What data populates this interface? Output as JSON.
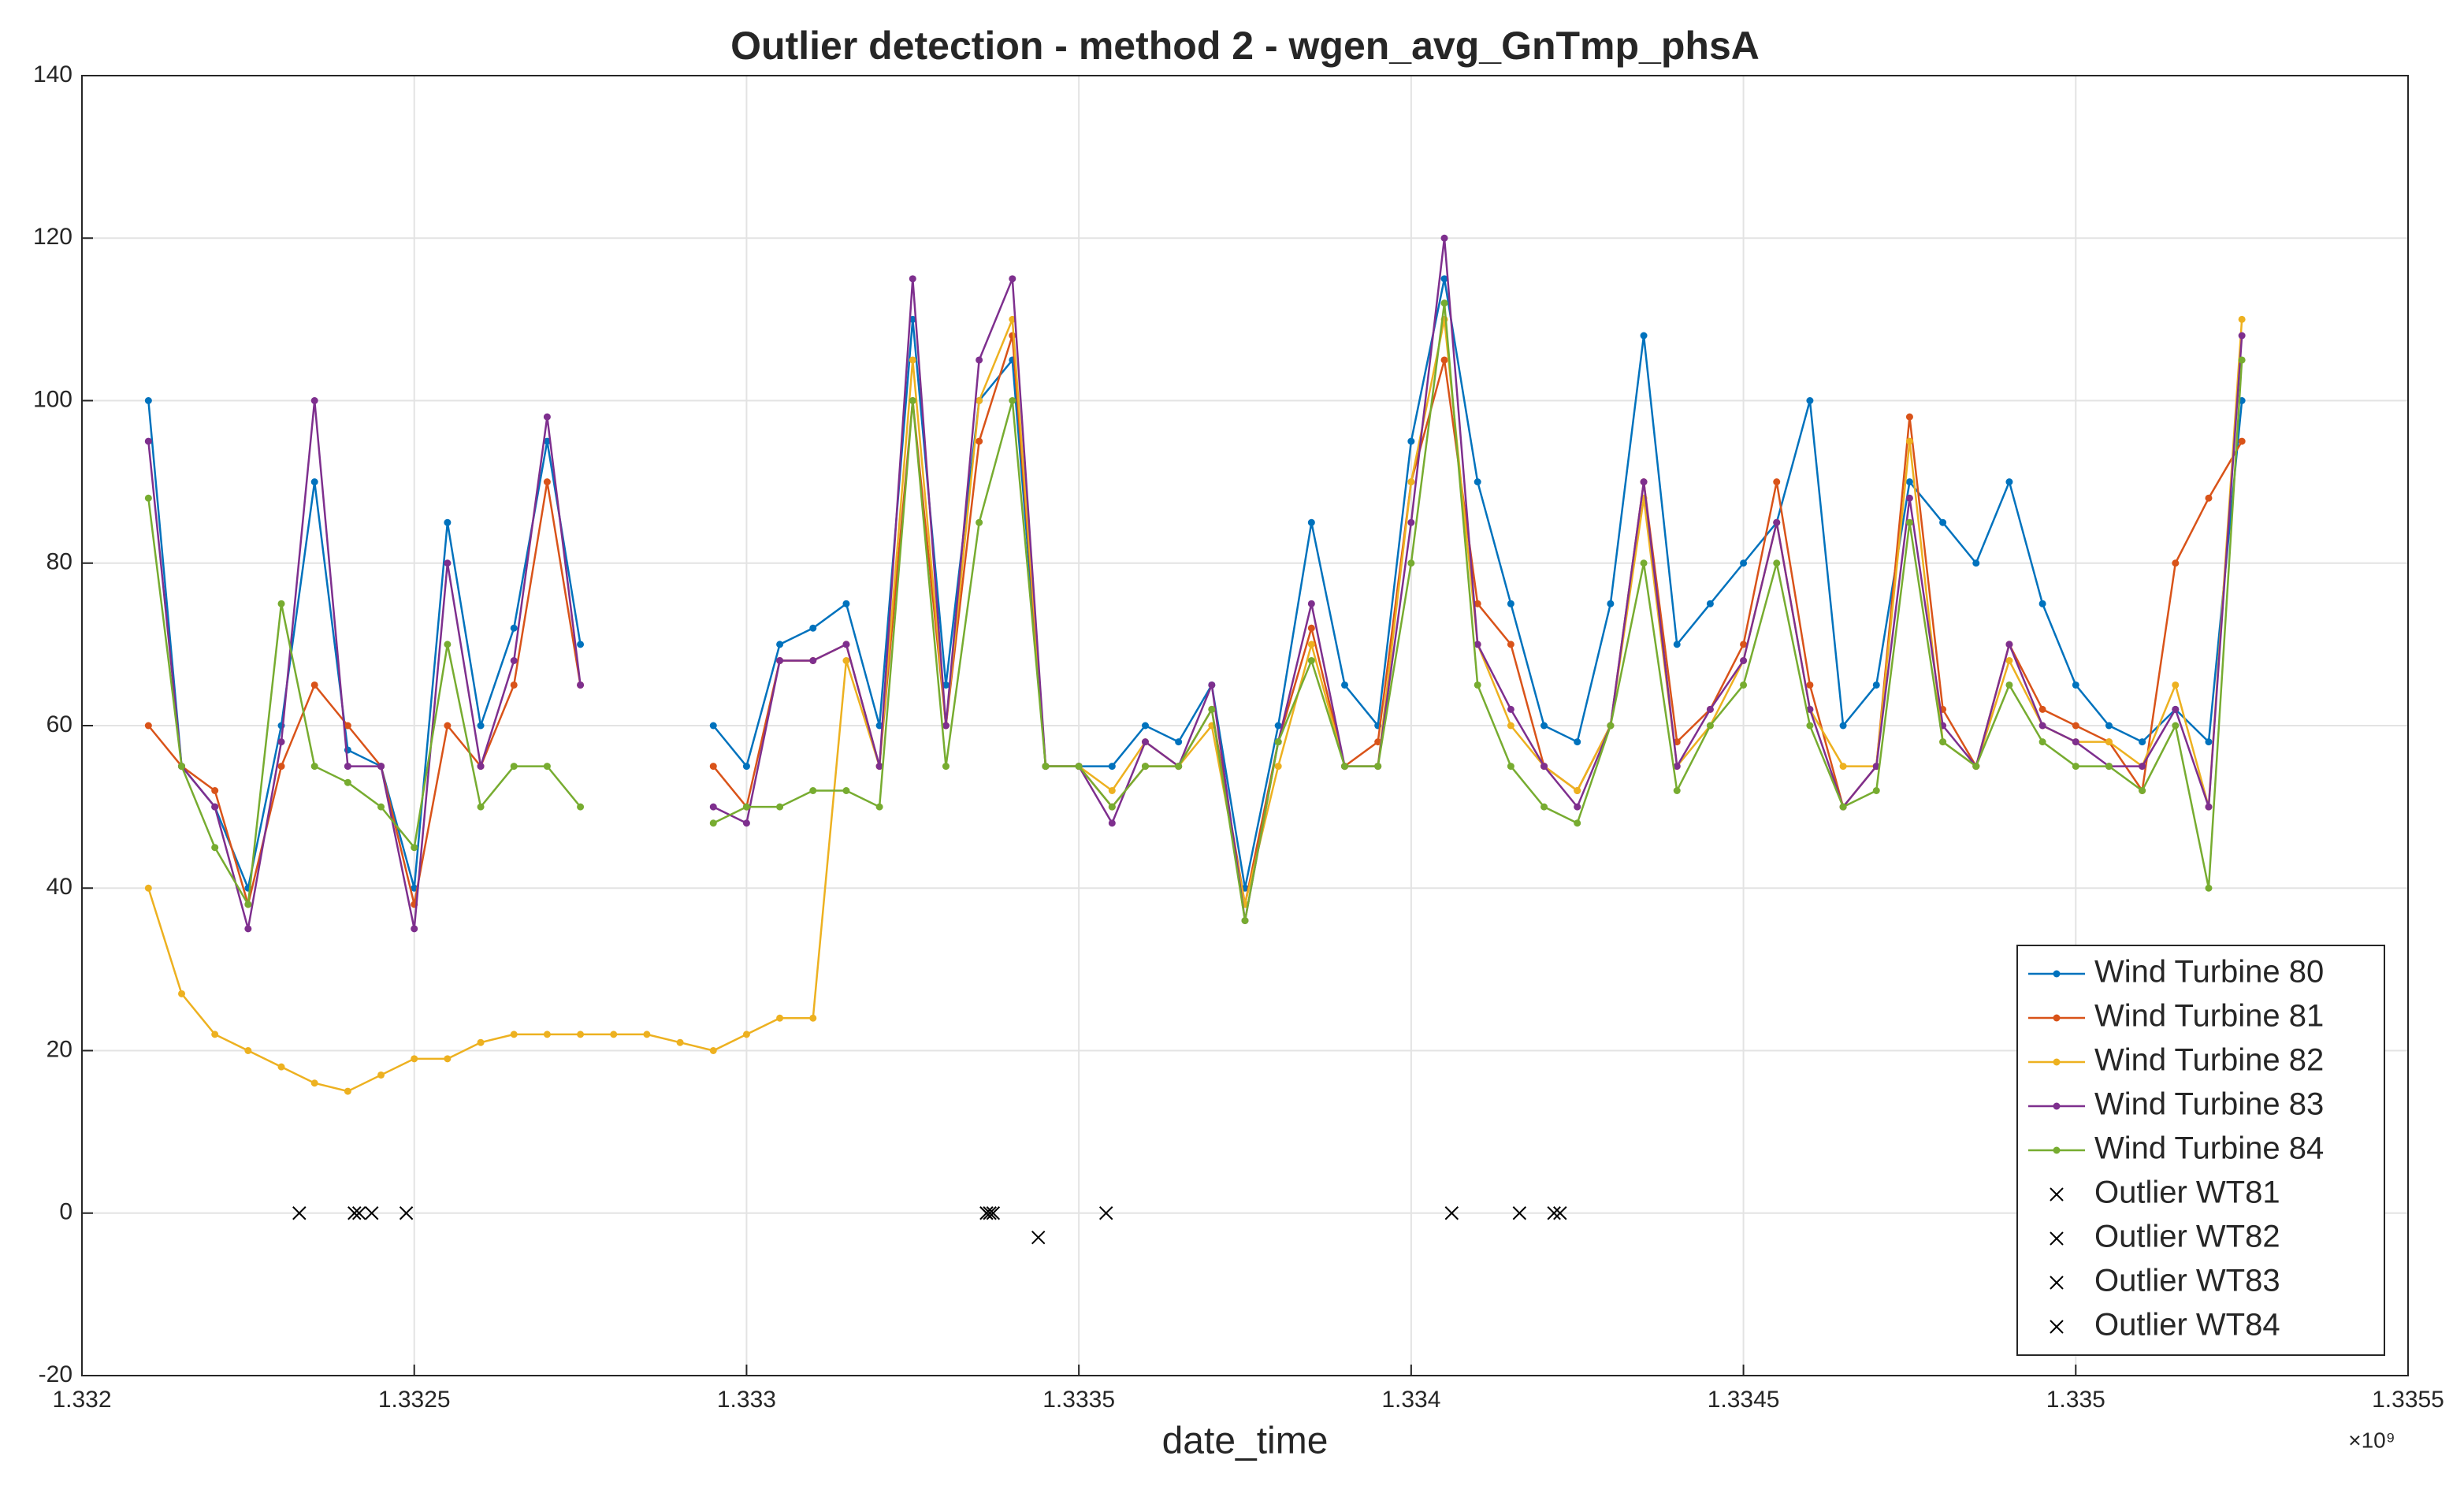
{
  "chart_data": {
    "type": "line",
    "title": "Outlier detection - method 2 - wgen_avg_GnTmp_phsA",
    "x_label": "date_time",
    "x_exponent_label": "×10⁹",
    "xlim": [
      1.332,
      1.3355
    ],
    "xticks": [
      1.332,
      1.3325,
      1.333,
      1.3335,
      1.334,
      1.3345,
      1.335,
      1.3355
    ],
    "ylim": [
      -20,
      140
    ],
    "yticks": [
      -20,
      0,
      20,
      40,
      60,
      80,
      100,
      120,
      140
    ],
    "grid": true,
    "legend": "lower right",
    "x": [
      1.3321,
      1.33215,
      1.3322,
      1.33225,
      1.3323,
      1.33235,
      1.3324,
      1.33245,
      1.3325,
      1.33255,
      1.3326,
      1.33265,
      1.3327,
      1.33275,
      1.3328,
      1.33285,
      1.3329,
      1.33295,
      1.333,
      1.33305,
      1.3331,
      1.33315,
      1.3332,
      1.33325,
      1.3333,
      1.33335,
      1.3334,
      1.33345,
      1.3335,
      1.33355,
      1.3336,
      1.33365,
      1.3337,
      1.33375,
      1.3338,
      1.33385,
      1.3339,
      1.33395,
      1.334,
      1.33405,
      1.3341,
      1.33415,
      1.3342,
      1.33425,
      1.3343,
      1.33435,
      1.3344,
      1.33445,
      1.3345,
      1.33455,
      1.3346,
      1.33465,
      1.3347,
      1.33475,
      1.3348,
      1.33485,
      1.3349,
      1.33495,
      1.335,
      1.33505,
      1.3351,
      1.33515,
      1.3352,
      1.33525
    ],
    "series": [
      {
        "name": "Wind Turbine 80",
        "color": "#0072BD",
        "marker": ".",
        "values": [
          100,
          55,
          50,
          40,
          60,
          90,
          57,
          55,
          40,
          85,
          60,
          72,
          95,
          70,
          null,
          null,
          null,
          60,
          55,
          70,
          72,
          75,
          60,
          110,
          65,
          100,
          105,
          55,
          55,
          55,
          60,
          58,
          65,
          40,
          60,
          85,
          65,
          60,
          95,
          115,
          90,
          75,
          60,
          58,
          75,
          108,
          70,
          75,
          80,
          85,
          100,
          60,
          65,
          90,
          85,
          80,
          90,
          75,
          65,
          60,
          58,
          62,
          58,
          100
        ]
      },
      {
        "name": "Wind Turbine 81",
        "color": "#D95319",
        "marker": ".",
        "values": [
          60,
          55,
          52,
          38,
          55,
          65,
          60,
          55,
          38,
          60,
          55,
          65,
          90,
          65,
          null,
          null,
          null,
          55,
          50,
          68,
          68,
          70,
          55,
          100,
          60,
          95,
          108,
          55,
          55,
          50,
          55,
          55,
          62,
          38,
          58,
          72,
          55,
          58,
          90,
          105,
          75,
          70,
          55,
          52,
          60,
          90,
          58,
          62,
          70,
          90,
          65,
          50,
          55,
          98,
          62,
          55,
          70,
          62,
          60,
          58,
          52,
          80,
          88,
          95
        ]
      },
      {
        "name": "Wind Turbine 82",
        "color": "#EDB120",
        "marker": ".",
        "values": [
          40,
          27,
          22,
          20,
          18,
          16,
          15,
          17,
          19,
          19,
          21,
          22,
          22,
          22,
          22,
          22,
          21,
          20,
          22,
          24,
          24,
          68,
          55,
          105,
          60,
          100,
          110,
          55,
          55,
          52,
          58,
          55,
          60,
          38,
          55,
          70,
          55,
          55,
          90,
          110,
          70,
          60,
          55,
          52,
          60,
          88,
          55,
          60,
          68,
          85,
          62,
          55,
          55,
          95,
          58,
          55,
          68,
          60,
          58,
          58,
          55,
          65,
          50,
          110
        ]
      },
      {
        "name": "Wind Turbine 83",
        "color": "#7E2F8E",
        "marker": ".",
        "values": [
          95,
          55,
          50,
          35,
          58,
          100,
          55,
          55,
          35,
          80,
          55,
          68,
          98,
          65,
          null,
          null,
          null,
          50,
          48,
          68,
          68,
          70,
          55,
          115,
          60,
          105,
          115,
          55,
          55,
          48,
          58,
          55,
          65,
          36,
          58,
          75,
          55,
          55,
          85,
          120,
          70,
          62,
          55,
          50,
          60,
          90,
          55,
          62,
          68,
          85,
          62,
          50,
          55,
          88,
          60,
          55,
          70,
          60,
          58,
          55,
          55,
          62,
          50,
          108
        ]
      },
      {
        "name": "Wind Turbine 84",
        "color": "#77AC30",
        "marker": ".",
        "values": [
          88,
          55,
          45,
          38,
          75,
          55,
          53,
          50,
          45,
          70,
          50,
          55,
          55,
          50,
          null,
          null,
          null,
          48,
          50,
          50,
          52,
          52,
          50,
          100,
          55,
          85,
          100,
          55,
          55,
          50,
          55,
          55,
          62,
          36,
          58,
          68,
          55,
          55,
          80,
          112,
          65,
          55,
          50,
          48,
          60,
          80,
          52,
          60,
          65,
          80,
          60,
          50,
          52,
          85,
          58,
          55,
          65,
          58,
          55,
          55,
          52,
          60,
          40,
          105
        ]
      },
      {
        "name": "Outlier WT81",
        "color": "#000000",
        "marker": "x",
        "x": [
          1.332436,
          1.332488,
          1.334061,
          1.334215
        ],
        "values": [
          0,
          0,
          0,
          0
        ]
      },
      {
        "name": "Outlier WT82",
        "color": "#000000",
        "marker": "x",
        "x": [
          1.332417,
          1.333361,
          1.333371
        ],
        "values": [
          0,
          0,
          0
        ]
      },
      {
        "name": "Outlier WT83",
        "color": "#000000",
        "marker": "x",
        "x": [
          1.33241,
          1.333366,
          1.333439
        ],
        "values": [
          0,
          0,
          -3
        ]
      },
      {
        "name": "Outlier WT84",
        "color": "#000000",
        "marker": "x",
        "x": [
          1.332327,
          1.333541,
          1.334163,
          1.334224
        ],
        "values": [
          0,
          0,
          0,
          0
        ]
      }
    ]
  }
}
